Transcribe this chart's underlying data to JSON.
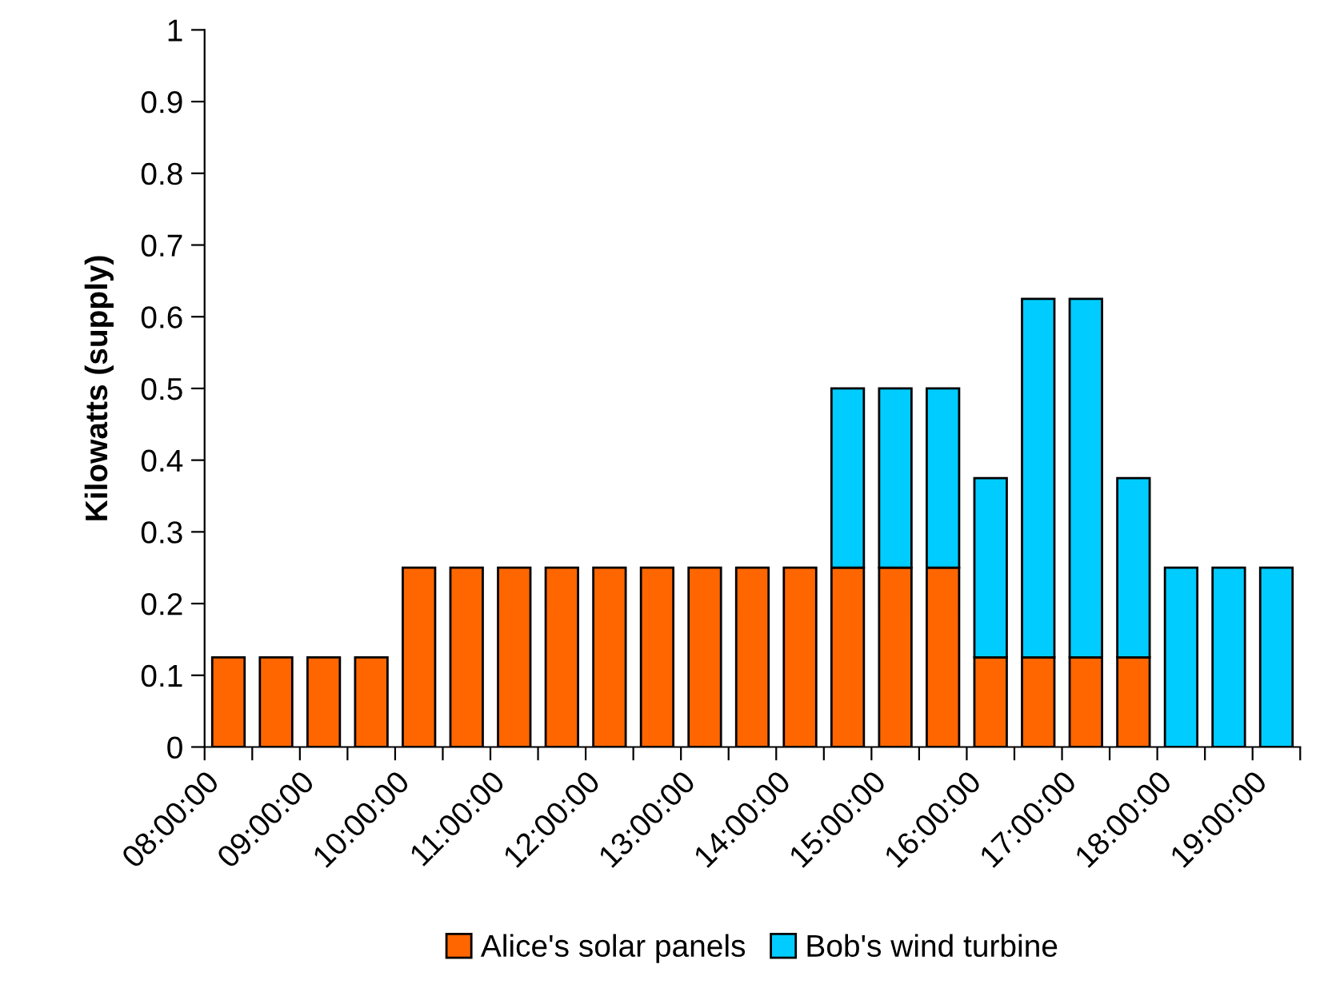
{
  "chart_data": {
    "type": "bar",
    "stacked": true,
    "ylabel": "Kilowatts (supply)",
    "x": [
      8.25,
      8.75,
      9.25,
      9.75,
      10.25,
      10.75,
      11.25,
      11.75,
      12.25,
      12.75,
      13.25,
      13.75,
      14.25,
      14.75,
      15.25,
      15.75,
      16.25,
      16.75,
      17.25,
      17.75,
      18.25,
      18.75,
      19.25
    ],
    "series": [
      {
        "name": "Alice's solar panels",
        "color": "#ff6600",
        "values": [
          0.125,
          0.125,
          0.125,
          0.125,
          0.25,
          0.25,
          0.25,
          0.25,
          0.25,
          0.25,
          0.25,
          0.25,
          0.25,
          0.25,
          0.25,
          0.25,
          0.125,
          0.125,
          0.125,
          0.125,
          null,
          null,
          null
        ]
      },
      {
        "name": "Bob's wind turbine",
        "color": "#00ccff",
        "values": [
          null,
          null,
          null,
          null,
          null,
          null,
          null,
          null,
          null,
          null,
          null,
          null,
          null,
          0.25,
          0.25,
          0.25,
          0.25,
          0.5,
          0.5,
          0.25,
          0.25,
          0.25,
          0.25
        ]
      }
    ],
    "xlim": [
      8,
      19.5
    ],
    "xticks": [
      {
        "value": 8,
        "label": "08:00:00"
      },
      {
        "value": 8.5,
        "label": null
      },
      {
        "value": 9,
        "label": "09:00:00"
      },
      {
        "value": 9.5,
        "label": null
      },
      {
        "value": 10,
        "label": "10:00:00"
      },
      {
        "value": 10.5,
        "label": null
      },
      {
        "value": 11,
        "label": "11:00:00"
      },
      {
        "value": 11.5,
        "label": null
      },
      {
        "value": 12,
        "label": "12:00:00"
      },
      {
        "value": 12.5,
        "label": null
      },
      {
        "value": 13,
        "label": "13:00:00"
      },
      {
        "value": 13.5,
        "label": null
      },
      {
        "value": 14,
        "label": "14:00:00"
      },
      {
        "value": 14.5,
        "label": null
      },
      {
        "value": 15,
        "label": "15:00:00"
      },
      {
        "value": 15.5,
        "label": null
      },
      {
        "value": 16,
        "label": "16:00:00"
      },
      {
        "value": 16.5,
        "label": null
      },
      {
        "value": 17,
        "label": "17:00:00"
      },
      {
        "value": 17.5,
        "label": null
      },
      {
        "value": 18,
        "label": "18:00:00"
      },
      {
        "value": 18.5,
        "label": null
      },
      {
        "value": 19,
        "label": "19:00:00"
      },
      {
        "value": 19.5,
        "label": null
      }
    ],
    "ylim": [
      0,
      1
    ],
    "yticks": [
      0,
      0.1,
      0.2,
      0.3,
      0.4,
      0.5,
      0.6,
      0.7,
      0.8,
      0.9,
      1
    ],
    "grid": false,
    "legend": "bottom"
  }
}
